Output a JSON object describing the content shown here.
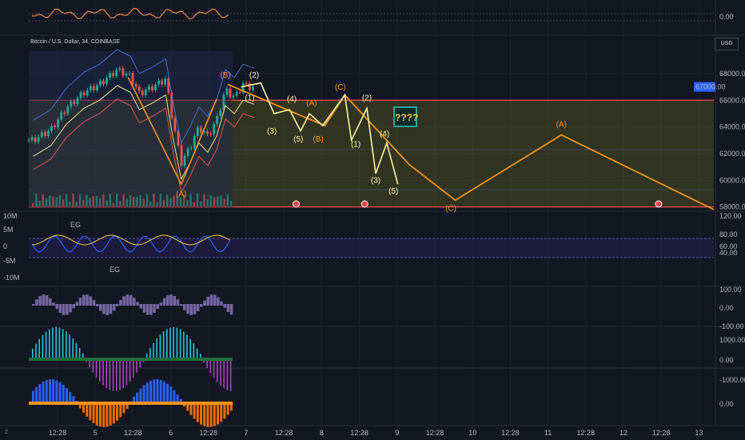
{
  "header": {
    "symbol_title": "Bitcoin / U.S. Dollar, 34, COINBASE",
    "currency": "USD",
    "question_box": "????"
  },
  "chart_data": {
    "type": "line",
    "title": "Bitcoin / U.S. Dollar, 34, COINBASE",
    "price_axis_ticks": [
      "68000.00",
      "66000.00",
      "64000.00",
      "62000.00",
      "60000.00",
      "58000.00"
    ],
    "price_axis_range": [
      57800,
      69800
    ],
    "current_price_label": "67000.00",
    "time_axis_labels": [
      "12:28",
      "5",
      "12:28",
      "6",
      "12:28",
      "7",
      "12:28",
      "8",
      "12:28",
      "9",
      "12:28",
      "10",
      "12:28",
      "11",
      "12:28",
      "12",
      "12:28",
      "13"
    ],
    "top_panel": {
      "ticks": [
        "0.00"
      ]
    },
    "volume_delta_panel": {
      "left_ticks": [
        "10M",
        "5M",
        "0",
        "-5M",
        "-10M"
      ],
      "right_ticks": [
        "120.00",
        "80.00",
        "60.00",
        "40.00"
      ],
      "labels": [
        "EG",
        "EG"
      ]
    },
    "oscillator_panel": {
      "ticks": [
        "100.00",
        "0.00",
        "-100.00"
      ]
    },
    "histogram_panel_1": {
      "ticks": [
        "1000.00",
        "0.00"
      ]
    },
    "histogram_panel_2": {
      "ticks": [
        "-1000.00",
        "0.00"
      ]
    },
    "elliott_wave": {
      "yellow_labels": [
        {
          "label": "(2)",
          "t": 10.2,
          "price": 67700
        },
        {
          "label": "(1)",
          "t": 10.0,
          "price": 66000
        },
        {
          "label": "(3)",
          "t": 11.0,
          "price": 63500
        },
        {
          "label": "(4)",
          "t": 11.9,
          "price": 65900
        },
        {
          "label": "(5)",
          "t": 12.2,
          "price": 62900
        },
        {
          "label": "(2)",
          "t": 15.3,
          "price": 66000
        },
        {
          "label": "(1)",
          "t": 14.8,
          "price": 62500
        },
        {
          "label": "(4)",
          "t": 16.1,
          "price": 63300
        },
        {
          "label": "(3)",
          "t": 15.7,
          "price": 59800
        },
        {
          "label": "(5)",
          "t": 16.5,
          "price": 59000
        }
      ],
      "orange_labels": [
        {
          "label": "(B)",
          "t": 8.9,
          "price": 67700
        },
        {
          "label": "(A)",
          "t": 6.9,
          "price": 58800
        },
        {
          "label": "(A)",
          "t": 12.8,
          "price": 65600
        },
        {
          "label": "(B)",
          "t": 13.1,
          "price": 62900
        },
        {
          "label": "(C)",
          "t": 14.1,
          "price": 66800
        },
        {
          "label": "(C)",
          "t": 19.1,
          "price": 57700
        },
        {
          "label": "(A)",
          "t": 24.1,
          "price": 64000
        }
      ],
      "orange_path": [
        [
          9.0,
          67200
        ],
        [
          12.1,
          65000
        ],
        [
          13.4,
          64100
        ],
        [
          14.3,
          66400
        ],
        [
          17.2,
          61200
        ],
        [
          19.3,
          58500
        ],
        [
          24.1,
          63400
        ],
        [
          31.0,
          57800
        ]
      ],
      "orange_early_path": [
        [
          4.5,
          67700
        ],
        [
          6.9,
          59700
        ],
        [
          8.5,
          66100
        ]
      ],
      "yellow_path": [
        [
          9.6,
          67000
        ],
        [
          10.5,
          67300
        ],
        [
          11.1,
          65000
        ],
        [
          11.8,
          65300
        ],
        [
          12.3,
          63700
        ],
        [
          12.7,
          65000
        ],
        [
          13.3,
          64100
        ],
        [
          14.3,
          66400
        ],
        [
          14.6,
          63000
        ],
        [
          15.3,
          65400
        ],
        [
          15.7,
          60500
        ],
        [
          16.2,
          62800
        ],
        [
          16.7,
          59700
        ]
      ]
    },
    "price_series": [
      {
        "t": 0.2,
        "price": 63000
      },
      {
        "t": 1.0,
        "price": 63800
      },
      {
        "t": 1.7,
        "price": 65400
      },
      {
        "t": 2.5,
        "price": 66600
      },
      {
        "t": 3.2,
        "price": 67200
      },
      {
        "t": 4.0,
        "price": 68300
      },
      {
        "t": 4.6,
        "price": 67800
      },
      {
        "t": 5.0,
        "price": 66500
      },
      {
        "t": 5.6,
        "price": 67000
      },
      {
        "t": 6.2,
        "price": 67600
      },
      {
        "t": 6.5,
        "price": 64600
      },
      {
        "t": 6.9,
        "price": 61300
      },
      {
        "t": 7.3,
        "price": 62500
      },
      {
        "t": 7.7,
        "price": 64000
      },
      {
        "t": 8.1,
        "price": 63300
      },
      {
        "t": 8.5,
        "price": 64500
      },
      {
        "t": 8.9,
        "price": 66800
      },
      {
        "t": 9.3,
        "price": 66200
      },
      {
        "t": 9.7,
        "price": 67200
      },
      {
        "t": 10.2,
        "price": 66900
      }
    ],
    "horizontal_levels": [
      66000,
      62300,
      59300,
      58000
    ],
    "grid": true
  }
}
